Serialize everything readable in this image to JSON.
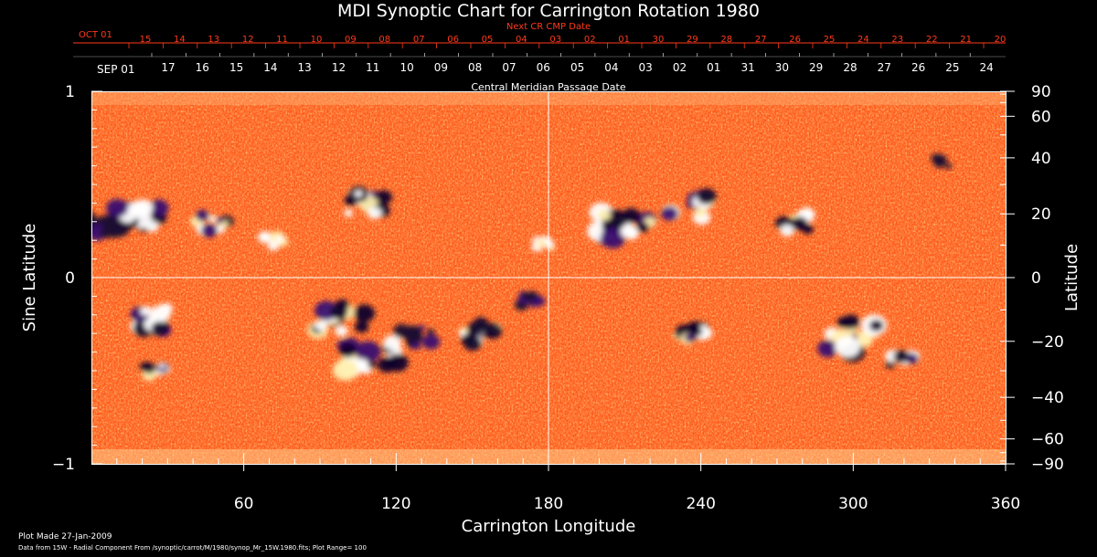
{
  "colors": {
    "background": "#000000",
    "text": "#ffffff",
    "next_cr_text": "#ff3a1a",
    "grid": "#ffffff",
    "map_palette": [
      "#1a0a3a",
      "#3a1070",
      "#c02000",
      "#e83a10",
      "#ff5a1a",
      "#ff7a2a",
      "#ffb060",
      "#ffe8a0",
      "#ffffff"
    ]
  },
  "chart_data": {
    "type": "heatmap",
    "title": "MDI Synoptic Chart for Carrington Rotation 1980",
    "xlabel": "Carrington Longitude",
    "ylabel_left": "Sine Latitude",
    "ylabel_right": "Latitude",
    "xlim": [
      0,
      360
    ],
    "ylim": [
      -1,
      1
    ],
    "x_ticks": [
      "60",
      "120",
      "180",
      "240",
      "300",
      "360"
    ],
    "x_tick_values": [
      60,
      120,
      180,
      240,
      300,
      360
    ],
    "y_left_ticks": [
      {
        "label": "1",
        "value": 1
      },
      {
        "label": "0",
        "value": 0
      },
      {
        "label": "−1",
        "value": -1
      }
    ],
    "y_right_ticks": [
      {
        "label": "90",
        "lat": 90
      },
      {
        "label": "60",
        "lat": 60
      },
      {
        "label": "40",
        "lat": 40
      },
      {
        "label": "20",
        "lat": 20
      },
      {
        "label": "0",
        "lat": 0
      },
      {
        "label": "−20",
        "lat": -20
      },
      {
        "label": "−40",
        "lat": -40
      },
      {
        "label": "−60",
        "lat": -60
      },
      {
        "label": "−90",
        "lat": -90
      }
    ],
    "crosshair": {
      "longitude": 180,
      "sine_latitude": 0
    },
    "cmp_axis": {
      "label": "Central Meridian Passage Date",
      "start_label": "SEP 01",
      "dates": [
        "17",
        "16",
        "15",
        "14",
        "13",
        "12",
        "11",
        "10",
        "09",
        "08",
        "07",
        "06",
        "05",
        "04",
        "03",
        "02",
        "01",
        "31",
        "30",
        "29",
        "28",
        "27",
        "26",
        "25",
        "24"
      ]
    },
    "next_cr_axis": {
      "label": "Next CR CMP Date",
      "start_label": "OCT 01",
      "dates": [
        "15",
        "14",
        "13",
        "12",
        "11",
        "10",
        "09",
        "08",
        "07",
        "06",
        "05",
        "04",
        "03",
        "02",
        "01",
        "30",
        "29",
        "28",
        "27",
        "26",
        "25",
        "24",
        "23",
        "22",
        "21",
        "20"
      ]
    },
    "active_regions": [
      {
        "lon": 6,
        "sinlat": 0.3,
        "polarity": "negative",
        "strength": 0.9
      },
      {
        "lon": 18,
        "sinlat": 0.32,
        "polarity": "mixed",
        "strength": 0.8
      },
      {
        "lon": 48,
        "sinlat": 0.29,
        "polarity": "mixed",
        "strength": 0.6
      },
      {
        "lon": 108,
        "sinlat": 0.4,
        "polarity": "mixed",
        "strength": 0.7
      },
      {
        "lon": 72,
        "sinlat": 0.2,
        "polarity": "positive",
        "strength": 0.4
      },
      {
        "lon": 178,
        "sinlat": 0.18,
        "polarity": "positive",
        "strength": 0.3
      },
      {
        "lon": 210,
        "sinlat": 0.27,
        "polarity": "mixed",
        "strength": 1.0
      },
      {
        "lon": 235,
        "sinlat": 0.38,
        "polarity": "mixed",
        "strength": 0.7
      },
      {
        "lon": 278,
        "sinlat": 0.3,
        "polarity": "mixed",
        "strength": 0.6
      },
      {
        "lon": 335,
        "sinlat": 0.62,
        "polarity": "negative",
        "strength": 0.3
      },
      {
        "lon": 25,
        "sinlat": -0.22,
        "polarity": "mixed",
        "strength": 0.8
      },
      {
        "lon": 25,
        "sinlat": -0.5,
        "polarity": "mixed",
        "strength": 0.4
      },
      {
        "lon": 98,
        "sinlat": -0.22,
        "polarity": "mixed",
        "strength": 0.9
      },
      {
        "lon": 110,
        "sinlat": -0.43,
        "polarity": "mixed",
        "strength": 1.0
      },
      {
        "lon": 128,
        "sinlat": -0.32,
        "polarity": "negative",
        "strength": 0.6
      },
      {
        "lon": 153,
        "sinlat": -0.3,
        "polarity": "mixed",
        "strength": 0.7
      },
      {
        "lon": 172,
        "sinlat": -0.12,
        "polarity": "negative",
        "strength": 0.4
      },
      {
        "lon": 238,
        "sinlat": -0.3,
        "polarity": "mixed",
        "strength": 0.6
      },
      {
        "lon": 300,
        "sinlat": -0.32,
        "polarity": "mixed",
        "strength": 1.0
      },
      {
        "lon": 318,
        "sinlat": -0.45,
        "polarity": "mixed",
        "strength": 0.5
      }
    ]
  },
  "footer": {
    "plot_made": "Plot Made 27-Jan-2009",
    "data_from": "Data from 15W - Radial Component From /synoptic/carrot/M/1980/synop_Mr_15W.1980.fits; Plot Range= 100"
  }
}
